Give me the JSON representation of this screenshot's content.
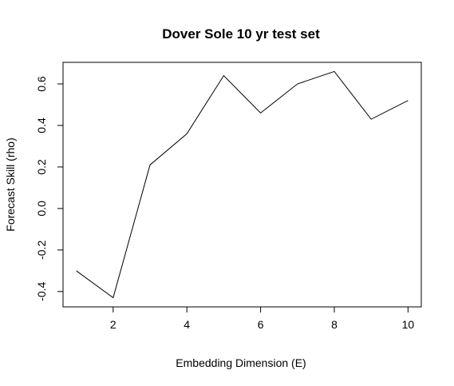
{
  "chart_data": {
    "type": "line",
    "title": "Dover Sole 10 yr test set",
    "xlabel": "Embedding Dimension (E)",
    "ylabel": "Forecast Skill (rho)",
    "x": [
      1,
      2,
      3,
      4,
      5,
      6,
      7,
      8,
      9,
      10
    ],
    "series": [
      {
        "values": [
          -0.3,
          -0.43,
          0.21,
          0.36,
          0.64,
          0.46,
          0.6,
          0.66,
          0.43,
          0.52
        ]
      }
    ],
    "xlim": [
      0.64,
      10.36
    ],
    "ylim": [
      -0.474,
      0.704
    ],
    "xticks": [
      2,
      4,
      6,
      8,
      10
    ],
    "yticks": [
      -0.4,
      -0.2,
      0.0,
      0.2,
      0.4,
      0.6
    ],
    "xtick_labels": [
      "2",
      "4",
      "6",
      "8",
      "10"
    ],
    "ytick_labels": [
      "-0.4",
      "-0.2",
      "0.0",
      "0.2",
      "0.4",
      "0.6"
    ],
    "grid": false,
    "line_color": "#000000"
  }
}
